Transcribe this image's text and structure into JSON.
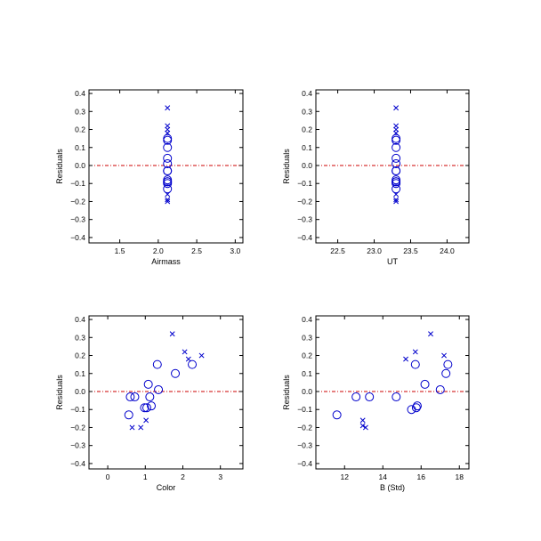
{
  "colors": {
    "marker": "#0000cc",
    "zero_line": "#cc0000",
    "axis": "#000000"
  },
  "chart_data": [
    {
      "type": "scatter",
      "xlabel": "Airmass",
      "ylabel": "Residuals",
      "xlim": [
        1.1,
        3.1
      ],
      "ylim": [
        -0.43,
        0.42
      ],
      "xticks": [
        "1.5",
        "2.0",
        "2.5",
        "3.0"
      ],
      "yticks": [
        "0.4",
        "0.3",
        "0.2",
        "0.1",
        "0.0",
        "−0.1",
        "−0.2",
        "−0.3",
        "−0.4"
      ],
      "zero_line": true,
      "series": [
        {
          "marker": "circle",
          "points": [
            [
              2.12,
              0.15
            ],
            [
              2.12,
              0.14
            ],
            [
              2.12,
              0.1
            ],
            [
              2.12,
              0.04
            ],
            [
              2.12,
              0.01
            ],
            [
              2.12,
              -0.03
            ],
            [
              2.12,
              -0.03
            ],
            [
              2.12,
              -0.08
            ],
            [
              2.12,
              -0.09
            ],
            [
              2.12,
              -0.09
            ],
            [
              2.12,
              -0.1
            ],
            [
              2.12,
              -0.13
            ]
          ]
        },
        {
          "marker": "x",
          "points": [
            [
              2.12,
              0.32
            ],
            [
              2.12,
              0.22
            ],
            [
              2.12,
              0.2
            ],
            [
              2.12,
              0.18
            ],
            [
              2.12,
              -0.16
            ],
            [
              2.12,
              -0.19
            ],
            [
              2.12,
              -0.2
            ]
          ]
        }
      ]
    },
    {
      "type": "scatter",
      "xlabel": "UT",
      "ylabel": "Residuals",
      "xlim": [
        22.2,
        24.3
      ],
      "ylim": [
        -0.43,
        0.42
      ],
      "xticks": [
        "22.5",
        "23.0",
        "23.5",
        "24.0"
      ],
      "yticks": [
        "0.4",
        "0.3",
        "0.2",
        "0.1",
        "0.0",
        "−0.1",
        "−0.2",
        "−0.3",
        "−0.4"
      ],
      "zero_line": true,
      "series": [
        {
          "marker": "circle",
          "points": [
            [
              23.3,
              0.15
            ],
            [
              23.3,
              0.14
            ],
            [
              23.3,
              0.1
            ],
            [
              23.3,
              0.04
            ],
            [
              23.3,
              0.01
            ],
            [
              23.3,
              -0.03
            ],
            [
              23.3,
              -0.03
            ],
            [
              23.3,
              -0.08
            ],
            [
              23.3,
              -0.09
            ],
            [
              23.3,
              -0.09
            ],
            [
              23.3,
              -0.1
            ],
            [
              23.3,
              -0.13
            ]
          ]
        },
        {
          "marker": "x",
          "points": [
            [
              23.3,
              0.32
            ],
            [
              23.3,
              0.22
            ],
            [
              23.3,
              0.2
            ],
            [
              23.3,
              0.18
            ],
            [
              23.3,
              -0.16
            ],
            [
              23.3,
              -0.19
            ],
            [
              23.3,
              -0.2
            ]
          ]
        }
      ]
    },
    {
      "type": "scatter",
      "xlabel": "Color",
      "ylabel": "Residuals",
      "xlim": [
        -0.5,
        3.6
      ],
      "ylim": [
        -0.43,
        0.42
      ],
      "xticks": [
        "0",
        "1",
        "2",
        "3"
      ],
      "yticks": [
        "0.4",
        "0.3",
        "0.2",
        "0.1",
        "0.0",
        "−0.1",
        "−0.2",
        "−0.3",
        "−0.4"
      ],
      "zero_line": true,
      "series": [
        {
          "marker": "circle",
          "points": [
            [
              0.56,
              -0.13
            ],
            [
              0.6,
              -0.03
            ],
            [
              0.72,
              -0.03
            ],
            [
              0.98,
              -0.09
            ],
            [
              1.04,
              -0.09
            ],
            [
              1.08,
              0.04
            ],
            [
              1.12,
              -0.03
            ],
            [
              1.16,
              -0.08
            ],
            [
              1.32,
              0.15
            ],
            [
              1.35,
              0.01
            ],
            [
              1.8,
              0.1
            ],
            [
              2.25,
              0.15
            ]
          ]
        },
        {
          "marker": "x",
          "points": [
            [
              0.65,
              -0.2
            ],
            [
              0.88,
              -0.2
            ],
            [
              1.02,
              -0.16
            ],
            [
              1.72,
              0.32
            ],
            [
              2.05,
              0.22
            ],
            [
              2.15,
              0.18
            ],
            [
              2.5,
              0.2
            ]
          ]
        }
      ]
    },
    {
      "type": "scatter",
      "xlabel": "B (Std)",
      "ylabel": "Residuals",
      "xlim": [
        10.5,
        18.5
      ],
      "ylim": [
        -0.43,
        0.42
      ],
      "xticks": [
        "12",
        "14",
        "16",
        "18"
      ],
      "yticks": [
        "0.4",
        "0.3",
        "0.2",
        "0.1",
        "0.0",
        "−0.1",
        "−0.2",
        "−0.3",
        "−0.4"
      ],
      "zero_line": true,
      "series": [
        {
          "marker": "circle",
          "points": [
            [
              11.6,
              -0.13
            ],
            [
              12.6,
              -0.03
            ],
            [
              13.3,
              -0.03
            ],
            [
              14.7,
              -0.03
            ],
            [
              15.5,
              -0.1
            ],
            [
              15.7,
              0.15
            ],
            [
              15.75,
              -0.09
            ],
            [
              15.8,
              -0.08
            ],
            [
              16.2,
              0.04
            ],
            [
              17.0,
              0.01
            ],
            [
              17.3,
              0.1
            ],
            [
              17.4,
              0.15
            ]
          ]
        },
        {
          "marker": "x",
          "points": [
            [
              12.95,
              -0.16
            ],
            [
              12.95,
              -0.19
            ],
            [
              13.1,
              -0.2
            ],
            [
              15.2,
              0.18
            ],
            [
              15.7,
              0.22
            ],
            [
              16.5,
              0.32
            ],
            [
              17.2,
              0.2
            ]
          ]
        }
      ]
    }
  ]
}
